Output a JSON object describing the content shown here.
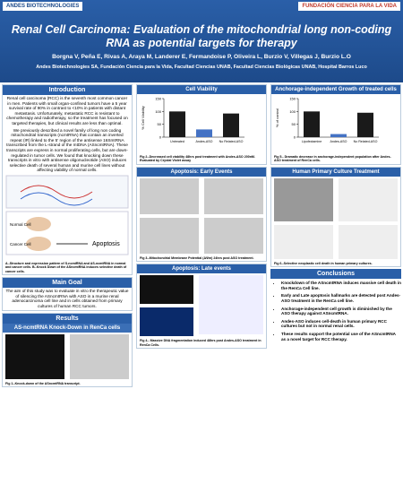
{
  "header": {
    "title": "Renal Cell Carcinoma: Evaluation of the mitochondrial long non-coding RNA as potential targets for therapy",
    "authors": "Borgna V, Peña E, Rivas A, Araya M, Landerer E, Fermandoise P, Oliveira L, Burzio V, Villegas J, Burzio L.O",
    "affiliations": "Andes Biotechnologies SA, Fundación Ciencia para la Vida, Facultad Ciencias UNAB, Facultad Ciencias Biológicas UNAB, Hospital Barros Luco",
    "logo_left": "ANDES BIOTECHNOLOGIES",
    "logo_right": "FUNDACIÓN CIENCIA PARA LA VIDA"
  },
  "introduction": {
    "title": "Introduction",
    "paragraphs": [
      "Renal cell carcinoma (RCC) is the seventh most common cancer in men. Patients with small organ-confined tumors have a 5 year survival rate of 90% in contrast to <10% in patients with distant metastasis. Unfortunately, metastatic RCC is resistant to chemotherapy and radiotherapy, so the treatment has focused on targeted therapies, but clinical results are less than optimal.",
      "We previously described a novel family of long non coding mitochondrial transcripts (ncmtRNA) that contain an inverted repeat (IR) linked to the 5' region of the antisense 16SmtRNA transcribed from the L-strand of the mtDNA (ASncmtRNA). These transcripts are express in normal proliferating cells, but are down-regulated in tumor cells. We found that knocking down these transcripts in vitro with antisense oligonucleotide (ASO) induces selective death of several human and murine cell lines without affecting viability of normal cells."
    ],
    "diagram": {
      "normal": "Normal Cell",
      "cancer": "Cancer Cell",
      "outcome": "Apoptosis"
    },
    "caption": "A.-Structure and expression pattern of S-ncmtRNA and AS-ncmtRNA in normal and cancer cells. B.-Knock Down of the ASncmtRNA induces selective death of cancer cells."
  },
  "main_goal": {
    "title": "Main Goal",
    "text": "The aim of this study was to evaluate in vitro the therapeutic value of silencing the ASncmtRNA with ASO in a murine renal adenocarcinoma cell line and in cells obtained from primary cultures of human RCC tumors."
  },
  "results": {
    "title": "Results",
    "subtitle": "AS-ncmtRNA Knock-Down in RenCa cells",
    "caption": "Fig 1.-Knock-down of the ASncmtRNA transcript."
  },
  "cell_viability": {
    "title": "Cell Viability",
    "chart": {
      "type": "bar",
      "categories": [
        "Untreated",
        "Andes-ASO",
        "No Related-ASO"
      ],
      "values": [
        100,
        30,
        92
      ],
      "colors": [
        "#1a1a1a",
        "#4472c4",
        "#1a1a1a"
      ],
      "ylabel": "% Cell Viability",
      "ylim": [
        0,
        150
      ],
      "yticks": [
        0,
        50,
        100,
        150
      ]
    },
    "caption": "Fig 2.-Decreased cell viability 48hrs post treatment with Andes-ASO 200nM. Evaluated by Crystal Violet assay"
  },
  "apoptosis_early": {
    "title": "Apoptosis: Early Events",
    "caption": "Fig 3.-Mitochondrial Membrane Potential (ΔΨm) 24hrs post ASO treatment."
  },
  "apoptosis_late": {
    "title": "Apoptosis: Late events",
    "caption": "Fig 4.- Massive DNA fragmentation induced 48hrs post Andes-ASO treatment in RenCa Cells."
  },
  "anchorage": {
    "title": "Anchorage-independent Growth of treated cells",
    "chart": {
      "type": "bar",
      "categories": [
        "Lipofectamine",
        "Andes-ASO",
        "No Related-ASO"
      ],
      "values": [
        100,
        12,
        95
      ],
      "colors": [
        "#1a1a1a",
        "#4472c4",
        "#1a1a1a"
      ],
      "ylabel": "% of control",
      "ylim": [
        0,
        150
      ],
      "yticks": [
        0,
        50,
        100,
        150
      ]
    },
    "caption": "Fig 5.- Dramatic decrease in anchorage-independent population after Andes-ASO treatment of RenCa cells."
  },
  "primary_culture": {
    "title": "Human Primary Culture Treatment",
    "caption": "Fig 6.-Selective neoplastic cell death in human primary cultures."
  },
  "conclusions": {
    "title": "Conclusions",
    "items": [
      "Knockdown of the ASncmtRNA induces massive cell death in the RenCa Cell line.",
      "Early and Late apoptosis hallmarks are detected post Andes-ASO treatment in the RenCa cell line.",
      "Anchorage-independent cell growth is diminished by the ASO therapy against ASncmtRNA.",
      "Andes-ASO induces cell-death in human primary RCC cultures but not in normal renal cells.",
      "These results support the potential use of the ASncmtRNA as a novel target for RCC therapy."
    ]
  }
}
